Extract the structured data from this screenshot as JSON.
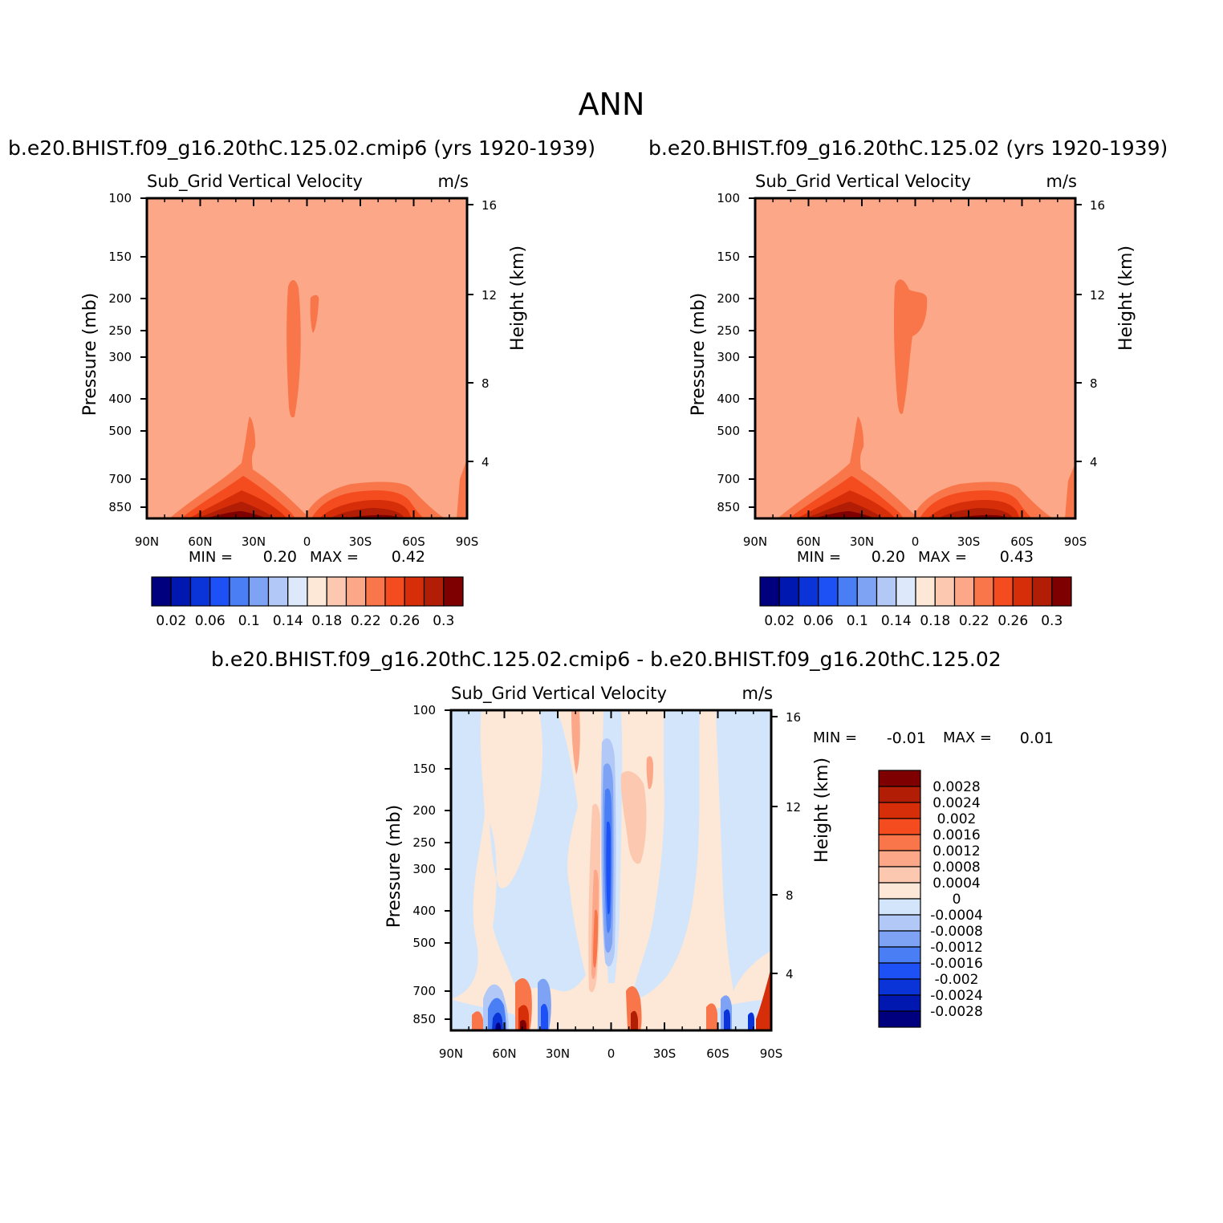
{
  "title": "ANN",
  "colors": {
    "abs_levels": [
      "#00007f",
      "#0017b0",
      "#0a34d8",
      "#1d50f5",
      "#4a7ef5",
      "#7ea3f5",
      "#b2c8f7",
      "#dde9fb",
      "#fde7d7",
      "#fcc9b0",
      "#fca787",
      "#f87649",
      "#f44c1f",
      "#d72e0a",
      "#b11e05",
      "#7e0000"
    ],
    "diff_levels": [
      "#00007f",
      "#0017b0",
      "#0a34d8",
      "#1d50f5",
      "#4a7ef5",
      "#7ea3f5",
      "#b2c8f7",
      "#d3e5fa",
      "#fde7d7",
      "#fcc9b0",
      "#fca787",
      "#f87649",
      "#f44c1f",
      "#d72e0a",
      "#b11e05",
      "#7e0000"
    ],
    "frame": "#000000"
  },
  "chart_data": [
    {
      "id": "left",
      "type": "heatmap",
      "case_title": "b.e20.BHIST.f09_g16.20thC.125.02.cmip6 (yrs 1920-1939)",
      "variable": "Sub_Grid Vertical Velocity",
      "units": "m/s",
      "ylabel": "Pressure (mb)",
      "ylabel_right": "Height (km)",
      "xticks": [
        "90N",
        "60N",
        "30N",
        "0",
        "30S",
        "60S",
        "90S"
      ],
      "yticks": [
        "100",
        "150",
        "200",
        "250",
        "300",
        "400",
        "500",
        "700",
        "850"
      ],
      "yticks_right": [
        "16",
        "12",
        "8",
        "4"
      ],
      "min_label": "MIN =",
      "min_value": "0.20",
      "max_label": "MAX =",
      "max_value": "0.42",
      "colorbar_labels": [
        "0.02",
        "0.06",
        "0.1",
        "0.14",
        "0.18",
        "0.22",
        "0.26",
        "0.3"
      ],
      "background_level": 10
    },
    {
      "id": "right",
      "type": "heatmap",
      "case_title": "b.e20.BHIST.f09_g16.20thC.125.02 (yrs 1920-1939)",
      "variable": "Sub_Grid Vertical Velocity",
      "units": "m/s",
      "ylabel": "Pressure (mb)",
      "ylabel_right": "Height (km)",
      "xticks": [
        "90N",
        "60N",
        "30N",
        "0",
        "30S",
        "60S",
        "90S"
      ],
      "yticks": [
        "100",
        "150",
        "200",
        "250",
        "300",
        "400",
        "500",
        "700",
        "850"
      ],
      "yticks_right": [
        "16",
        "12",
        "8",
        "4"
      ],
      "min_label": "MIN =",
      "min_value": "0.20",
      "max_label": "MAX =",
      "max_value": "0.43",
      "colorbar_labels": [
        "0.02",
        "0.06",
        "0.1",
        "0.14",
        "0.18",
        "0.22",
        "0.26",
        "0.3"
      ],
      "background_level": 10
    },
    {
      "id": "diff",
      "type": "heatmap",
      "case_title": "b.e20.BHIST.f09_g16.20thC.125.02.cmip6 - b.e20.BHIST.f09_g16.20thC.125.02",
      "variable": "Sub_Grid Vertical Velocity",
      "units": "m/s",
      "ylabel": "Pressure (mb)",
      "ylabel_right": "Height (km)",
      "xticks": [
        "90N",
        "60N",
        "30N",
        "0",
        "30S",
        "60S",
        "90S"
      ],
      "yticks": [
        "100",
        "150",
        "200",
        "250",
        "300",
        "400",
        "500",
        "700",
        "850"
      ],
      "yticks_right": [
        "16",
        "12",
        "8",
        "4"
      ],
      "min_label": "MIN =",
      "min_value": "-0.01",
      "max_label": "MAX =",
      "max_value": "0.01",
      "colorbar_labels": [
        "0.0028",
        "0.0024",
        "0.002",
        "0.0016",
        "0.0012",
        "0.0008",
        "0.0004",
        "0",
        "-0.0004",
        "-0.0008",
        "-0.0012",
        "-0.0016",
        "-0.002",
        "-0.0024",
        "-0.0028"
      ]
    }
  ]
}
